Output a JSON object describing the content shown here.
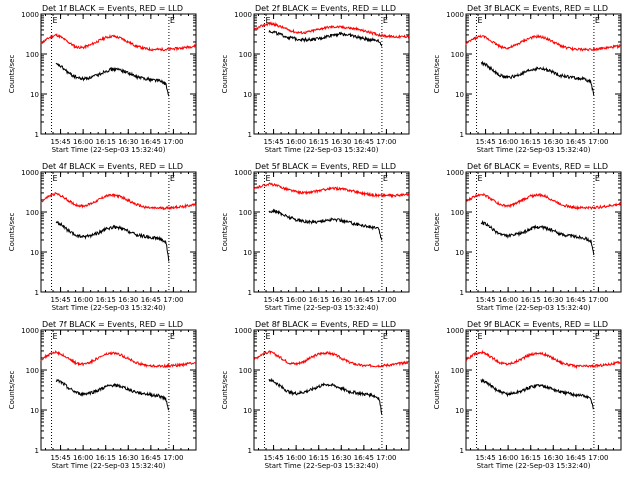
{
  "chart_data": {
    "type": "line",
    "layout": "3x3 grid",
    "ylabel": "Counts/sec",
    "xlabel": "Start Time (22-Sep-03 15:32:40)",
    "x_ticks": [
      "15:45",
      "16:00",
      "16:15",
      "16:30",
      "16:45",
      "17:00"
    ],
    "x_tick_minutes": [
      0,
      15,
      30,
      45,
      60,
      75
    ],
    "xlim_minutes": [
      -13,
      90
    ],
    "y_scale": "log",
    "y_ticks": [
      "1",
      "10",
      "100",
      "1000"
    ],
    "y_tick_values": [
      1,
      10,
      100,
      1000
    ],
    "ylim": [
      1,
      1000
    ],
    "marker_lines_minutes": [
      -6,
      72
    ],
    "marker_glyph": "E",
    "colors": {
      "events": "#000000",
      "lld": "#ff0000"
    },
    "panels": [
      {
        "title": "Det 1f BLACK = Events, RED = LLD",
        "series": [
          {
            "name": "RED = LLD",
            "x": [
              -13,
              -8,
              -3,
              0,
              5,
              10,
              15,
              20,
              25,
              30,
              35,
              40,
              45,
              50,
              55,
              60,
              65,
              70,
              75,
              80,
              85,
              90
            ],
            "values": [
              185,
              250,
              300,
              270,
              200,
              150,
              145,
              170,
              210,
              260,
              280,
              250,
              200,
              160,
              140,
              130,
              130,
              130,
              135,
              140,
              150,
              160
            ]
          },
          {
            "name": "BLACK = Events",
            "x": [
              -3,
              0,
              3,
              6,
              9,
              12,
              15,
              20,
              25,
              30,
              35,
              40,
              45,
              50,
              55,
              60,
              65,
              70,
              72
            ],
            "values": [
              55,
              50,
              40,
              32,
              28,
              25,
              24,
              26,
              30,
              38,
              42,
              40,
              34,
              27,
              25,
              23,
              22,
              18,
              8
            ]
          }
        ]
      },
      {
        "title": "Det 2f BLACK = Events, RED = LLD",
        "series": [
          {
            "name": "RED = LLD",
            "x": [
              -13,
              -8,
              -3,
              0,
              5,
              10,
              15,
              20,
              25,
              30,
              35,
              40,
              45,
              50,
              55,
              60,
              65,
              70,
              75,
              80,
              85,
              90
            ],
            "values": [
              400,
              500,
              580,
              560,
              480,
              400,
              350,
              340,
              370,
              420,
              460,
              480,
              470,
              450,
              420,
              380,
              340,
              300,
              280,
              270,
              270,
              280
            ]
          },
          {
            "name": "BLACK = Events",
            "x": [
              -3,
              0,
              5,
              10,
              15,
              20,
              25,
              30,
              35,
              40,
              45,
              50,
              55,
              60,
              65,
              70,
              72
            ],
            "values": [
              370,
              360,
              300,
              260,
              240,
              230,
              230,
              240,
              270,
              310,
              320,
              300,
              270,
              240,
              230,
              220,
              150
            ]
          }
        ]
      },
      {
        "title": "Det 3f BLACK = Events, RED = LLD",
        "series": [
          {
            "name": "RED = LLD",
            "x": [
              -13,
              -8,
              -3,
              0,
              5,
              10,
              15,
              20,
              25,
              30,
              35,
              40,
              45,
              50,
              55,
              60,
              65,
              70,
              75,
              80,
              85,
              90
            ],
            "values": [
              180,
              240,
              280,
              260,
              200,
              150,
              140,
              165,
              210,
              255,
              275,
              250,
              200,
              160,
              140,
              130,
              130,
              130,
              135,
              140,
              150,
              160
            ]
          },
          {
            "name": "BLACK = Events",
            "x": [
              -3,
              0,
              3,
              6,
              9,
              12,
              15,
              20,
              25,
              30,
              35,
              40,
              45,
              50,
              55,
              60,
              65,
              70,
              72
            ],
            "values": [
              60,
              55,
              45,
              36,
              30,
              27,
              26,
              28,
              33,
              40,
              44,
              41,
              35,
              29,
              27,
              25,
              24,
              20,
              9
            ]
          }
        ]
      },
      {
        "title": "Det 4f BLACK = Events, RED = LLD",
        "series": [
          {
            "name": "RED = LLD",
            "x": [
              -13,
              -8,
              -3,
              0,
              5,
              10,
              15,
              20,
              25,
              30,
              35,
              40,
              45,
              50,
              55,
              60,
              65,
              70,
              75,
              80,
              85,
              90
            ],
            "values": [
              180,
              245,
              290,
              260,
              195,
              150,
              140,
              160,
              200,
              250,
              270,
              240,
              195,
              155,
              135,
              125,
              125,
              125,
              130,
              135,
              145,
              155
            ]
          },
          {
            "name": "BLACK = Events",
            "x": [
              -3,
              0,
              3,
              6,
              9,
              12,
              15,
              20,
              25,
              30,
              35,
              40,
              45,
              50,
              55,
              60,
              65,
              70,
              72
            ],
            "values": [
              55,
              50,
              40,
              32,
              27,
              25,
              24,
              26,
              30,
              37,
              42,
              39,
              33,
              27,
              25,
              23,
              22,
              18,
              6
            ]
          }
        ]
      },
      {
        "title": "Det 5f BLACK = Events, RED = LLD",
        "series": [
          {
            "name": "RED = LLD",
            "x": [
              -13,
              -8,
              -3,
              0,
              5,
              10,
              15,
              20,
              25,
              30,
              35,
              40,
              45,
              50,
              55,
              60,
              65,
              70,
              75,
              80,
              85,
              90
            ],
            "values": [
              380,
              450,
              500,
              480,
              420,
              360,
              320,
              300,
              310,
              340,
              370,
              390,
              380,
              350,
              320,
              290,
              270,
              260,
              260,
              260,
              265,
              270
            ]
          },
          {
            "name": "BLACK = Events",
            "x": [
              -3,
              0,
              5,
              10,
              15,
              20,
              25,
              30,
              35,
              40,
              45,
              50,
              55,
              60,
              65,
              70,
              72
            ],
            "values": [
              100,
              110,
              90,
              75,
              65,
              58,
              56,
              58,
              62,
              65,
              62,
              56,
              50,
              46,
              42,
              38,
              18
            ]
          }
        ]
      },
      {
        "title": "Det 6f BLACK = Events, RED = LLD",
        "series": [
          {
            "name": "RED = LLD",
            "x": [
              -13,
              -8,
              -3,
              0,
              5,
              10,
              15,
              20,
              25,
              30,
              35,
              40,
              45,
              50,
              55,
              60,
              65,
              70,
              75,
              80,
              85,
              90
            ],
            "values": [
              180,
              240,
              285,
              260,
              200,
              150,
              140,
              160,
              205,
              250,
              270,
              245,
              195,
              158,
              138,
              128,
              128,
              128,
              132,
              138,
              148,
              158
            ]
          },
          {
            "name": "BLACK = Events",
            "x": [
              -3,
              0,
              3,
              6,
              9,
              12,
              15,
              20,
              25,
              30,
              35,
              40,
              45,
              50,
              55,
              60,
              65,
              70,
              72
            ],
            "values": [
              55,
              50,
              42,
              34,
              29,
              26,
              25,
              27,
              31,
              38,
              43,
              40,
              34,
              28,
              26,
              24,
              23,
              19,
              8
            ]
          }
        ]
      },
      {
        "title": "Det 7f BLACK = Events, RED = LLD",
        "series": [
          {
            "name": "RED = LLD",
            "x": [
              -13,
              -8,
              -3,
              0,
              5,
              10,
              15,
              20,
              25,
              30,
              35,
              40,
              45,
              50,
              55,
              60,
              65,
              70,
              75,
              80,
              85,
              90
            ],
            "values": [
              180,
              240,
              280,
              255,
              195,
              150,
              140,
              160,
              200,
              245,
              265,
              240,
              195,
              155,
              135,
              125,
              125,
              125,
              130,
              135,
              145,
              155
            ]
          },
          {
            "name": "BLACK = Events",
            "x": [
              -3,
              0,
              3,
              6,
              9,
              12,
              15,
              20,
              25,
              30,
              35,
              40,
              45,
              50,
              55,
              60,
              65,
              70,
              72
            ],
            "values": [
              55,
              50,
              42,
              34,
              29,
              26,
              25,
              27,
              31,
              38,
              42,
              39,
              33,
              28,
              26,
              24,
              23,
              19,
              10
            ]
          }
        ]
      },
      {
        "title": "Det 8f BLACK = Events, RED = LLD",
        "series": [
          {
            "name": "RED = LLD",
            "x": [
              -13,
              -8,
              -3,
              0,
              5,
              10,
              15,
              20,
              25,
              30,
              35,
              40,
              45,
              50,
              55,
              60,
              65,
              70,
              75,
              80,
              85,
              90
            ],
            "values": [
              185,
              245,
              285,
              260,
              200,
              152,
              142,
              162,
              205,
              252,
              272,
              248,
              198,
              158,
              138,
              128,
              128,
              128,
              132,
              138,
              148,
              158
            ]
          },
          {
            "name": "BLACK = Events",
            "x": [
              -3,
              0,
              3,
              6,
              9,
              12,
              15,
              20,
              25,
              30,
              35,
              40,
              45,
              50,
              55,
              60,
              65,
              70,
              72
            ],
            "values": [
              58,
              52,
              44,
              36,
              30,
              27,
              26,
              28,
              32,
              39,
              44,
              41,
              35,
              29,
              27,
              25,
              24,
              20,
              8
            ]
          }
        ]
      },
      {
        "title": "Det 9f BLACK = Events, RED = LLD",
        "series": [
          {
            "name": "RED = LLD",
            "x": [
              -13,
              -8,
              -3,
              0,
              5,
              10,
              15,
              20,
              25,
              30,
              35,
              40,
              45,
              50,
              55,
              60,
              65,
              70,
              75,
              80,
              85,
              90
            ],
            "values": [
              180,
              240,
              280,
              255,
              195,
              150,
              140,
              160,
              200,
              245,
              265,
              240,
              195,
              155,
              135,
              125,
              125,
              125,
              130,
              135,
              145,
              155
            ]
          },
          {
            "name": "BLACK = Events",
            "x": [
              -3,
              0,
              3,
              6,
              9,
              12,
              15,
              20,
              25,
              30,
              35,
              40,
              45,
              50,
              55,
              60,
              65,
              70,
              72
            ],
            "values": [
              55,
              50,
              42,
              34,
              29,
              26,
              25,
              27,
              31,
              38,
              42,
              39,
              33,
              28,
              26,
              24,
              23,
              19,
              10
            ]
          }
        ]
      }
    ]
  }
}
